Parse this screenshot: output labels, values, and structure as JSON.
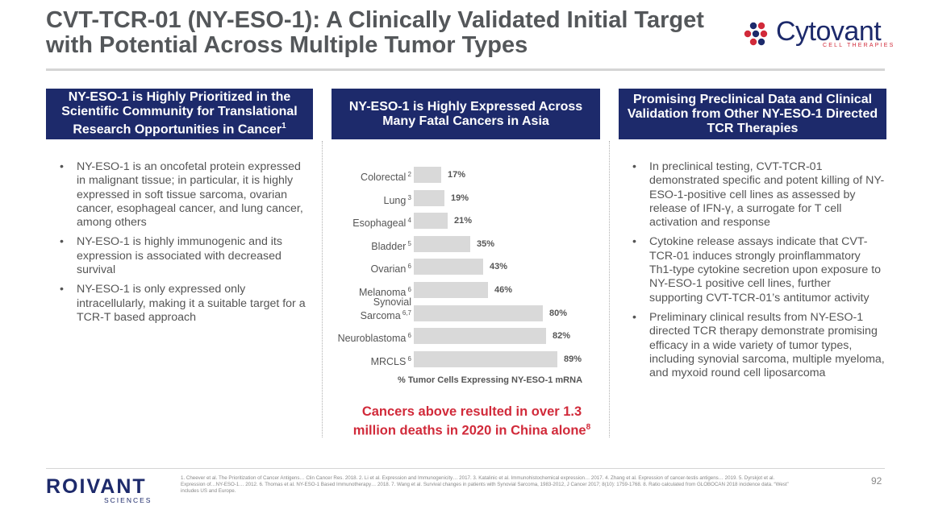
{
  "title": {
    "line1": "CVT-TCR-01 (NY-ESO-1): A Clinically Validated Initial Target",
    "line2": "with Potential Across Multiple Tumor Types"
  },
  "logo": {
    "name": "Cytovant",
    "tagline": "CELL THERAPIES",
    "icon": "cytovant-dots-icon"
  },
  "columns": {
    "left": {
      "header": "NY-ESO-1 is Highly Prioritized in the Scientific Community for Translational Research Opportunities in Cancer",
      "header_sup": "1",
      "bullets": [
        "NY-ESO-1 is an oncofetal protein expressed in malignant tissue; in particular, it is highly expressed in soft tissue sarcoma, ovarian cancer, esophageal cancer, and lung cancer, among others",
        "NY-ESO-1 is highly immunogenic and its expression is associated with decreased survival",
        "NY-ESO-1 is only expressed only intracellularly, making it a suitable target for a TCR-T based approach"
      ]
    },
    "middle": {
      "header": "NY-ESO-1 is Highly Expressed Across Many Fatal Cancers in Asia",
      "callout": "Cancers above resulted in over 1.3 million deaths in 2020 in China alone",
      "callout_sup": "8"
    },
    "right": {
      "header": "Promising Preclinical Data and Clinical Validation from Other NY-ESO-1 Directed TCR Therapies",
      "bullets": [
        "In preclinical testing, CVT-TCR-01 demonstrated specific and potent killing of NY-ESO-1-positive cell lines as assessed by release of IFN-γ, a surrogate for T cell activation and response",
        "Cytokine release assays indicate that CVT-TCR-01 induces strongly proinflammatory Th1-type cytokine secretion upon exposure to NY-ESO-1 positive cell lines, further supporting CVT-TCR-01’s antitumor activity",
        "Preliminary clinical results from NY-ESO-1 directed TCR therapy demonstrate promising efficacy in a wide variety of tumor types, including synovial sarcoma, multiple myeloma, and myxoid round cell liposarcoma"
      ]
    }
  },
  "chart_data": {
    "type": "bar",
    "orientation": "horizontal",
    "categories": [
      "Colorectal",
      "Lung",
      "Esophageal",
      "Bladder",
      "Ovarian",
      "Melanoma",
      "Synovial Sarcoma",
      "Neuroblastoma",
      "MRCLS"
    ],
    "category_lines": [
      [
        "Colorectal"
      ],
      [
        "Lung"
      ],
      [
        "Esophageal"
      ],
      [
        "Bladder"
      ],
      [
        "Ovarian"
      ],
      [
        "Melanoma"
      ],
      [
        "Synovial",
        "Sarcoma"
      ],
      [
        "Neuroblastoma"
      ],
      [
        "MRCLS"
      ]
    ],
    "superscripts": [
      "2",
      "3",
      "4",
      "5",
      "6",
      "6",
      "6,7",
      "6",
      "6"
    ],
    "values": [
      17,
      19,
      21,
      35,
      43,
      46,
      80,
      82,
      89
    ],
    "value_labels": [
      "17%",
      "19%",
      "21%",
      "35%",
      "43%",
      "46%",
      "80%",
      "82%",
      "89%"
    ],
    "xlabel": "% Tumor Cells Expressing NY-ESO-1 mRNA",
    "xlim": [
      0,
      100
    ],
    "bar_color": "#d9d9d9"
  },
  "footer": {
    "company": "ROIVANT",
    "company_sub": "SCIENCES",
    "references": "1. Cheever et al. The Prioritization of Cancer Antigens… Clin Cancer Res. 2018. 2. Li et al. Expression and Immunogenicity… 2017. 3. Katalinic et al. Immunohistochemical expression… 2017. 4. Zhang et al. Expression of cancer-testis antigens… 2019. 5. Dyrskjot et al. Expression of…NY-ESO-1… 2012. 6. Thomas et al. NY-ESO-1 Based Immunotherapy… 2018. 7. Wang et al. Survival changes in patients with Synovial Sarcoma, 1983-2012, J Cancer 2017; 8(10): 1759-1768. 8. Ratio calculated from GLOBOCAN 2018 incidence data. “West” includes US and Europe.",
    "page_number": "92"
  },
  "colors": {
    "navy": "#1d2a6b",
    "red": "#d12a3a",
    "grey_text": "#555555"
  }
}
